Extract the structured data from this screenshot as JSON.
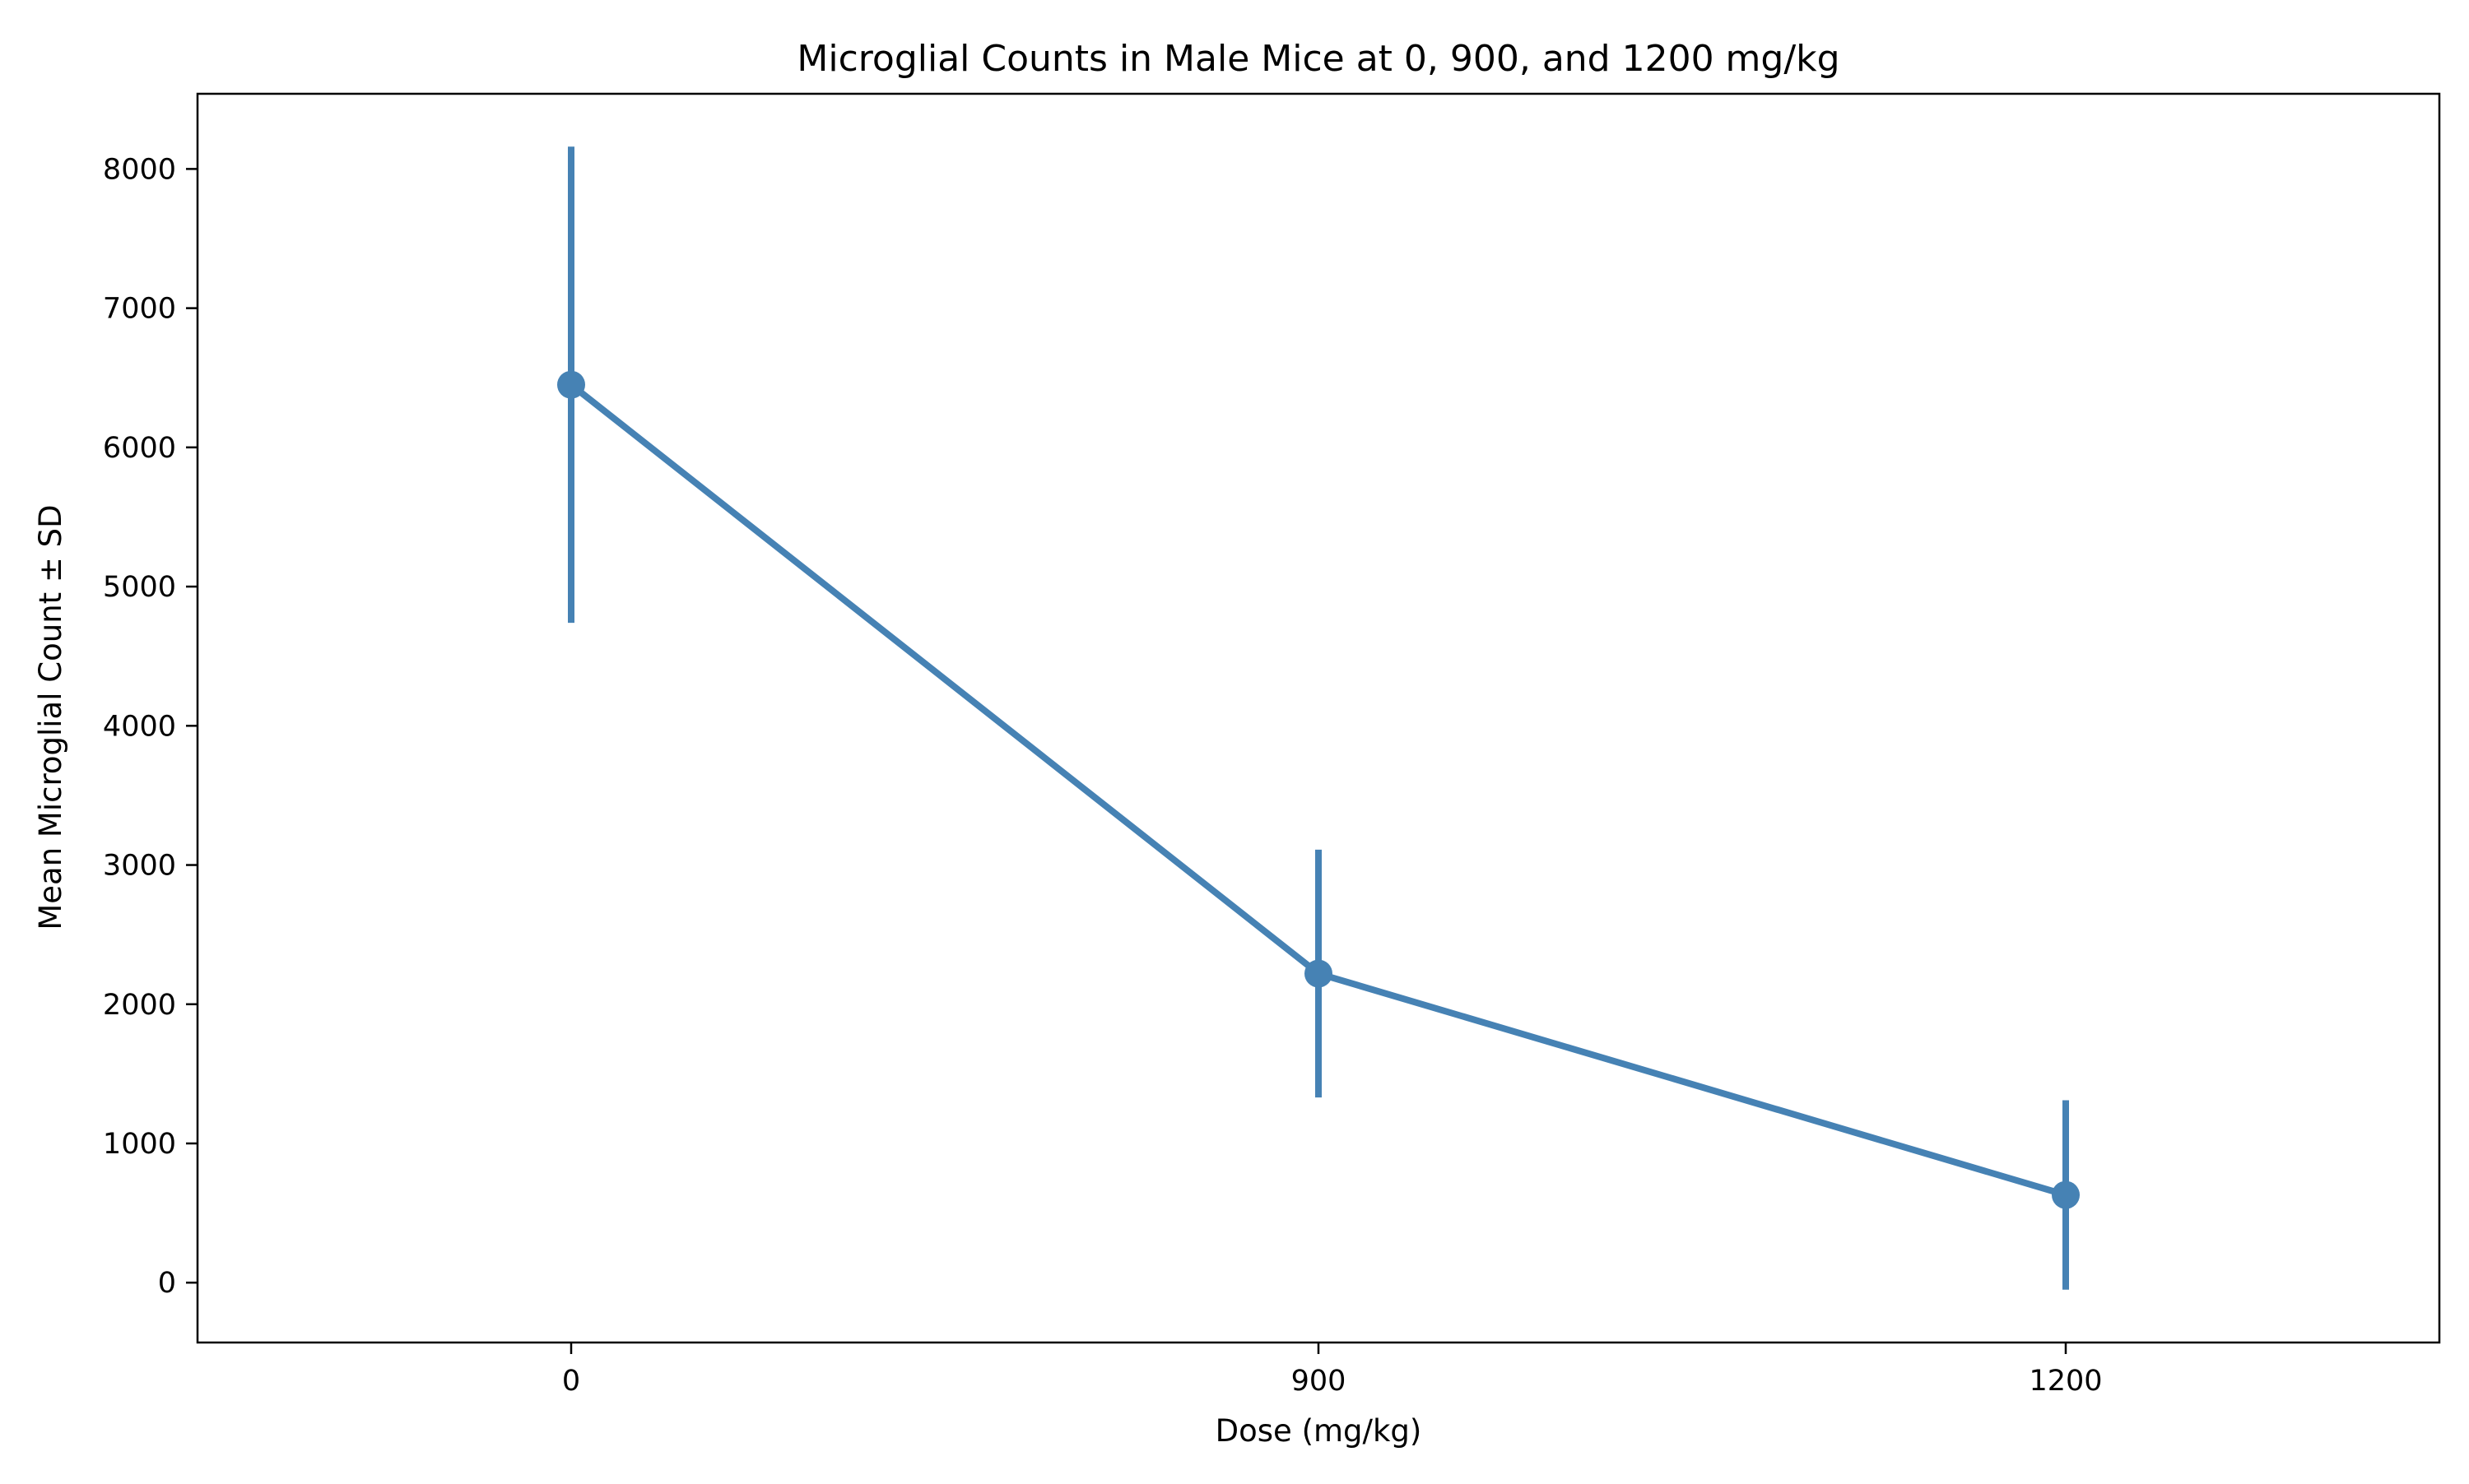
{
  "chart_data": {
    "type": "line",
    "title": "Microglial Counts in Male Mice at 0, 900, and 1200 mg/kg",
    "xlabel": "Dose (mg/kg)",
    "ylabel": "Mean Microglial Count ± SD",
    "categories": [
      "0",
      "900",
      "1200"
    ],
    "series": [
      {
        "values": [
          6450,
          2220,
          630
        ],
        "sd": [
          1710,
          890,
          680
        ]
      }
    ],
    "ylim": [
      -430,
      8540
    ],
    "yticks": [
      0,
      1000,
      2000,
      3000,
      4000,
      5000,
      6000,
      7000,
      8000
    ],
    "ytick_labels": [
      "0",
      "1000",
      "2000",
      "3000",
      "4000",
      "5000",
      "6000",
      "7000",
      "8000"
    ],
    "grid": false,
    "legend": "none",
    "colors": {
      "series": "#4682b4",
      "axes": "#000000",
      "background": "#ffffff"
    }
  }
}
